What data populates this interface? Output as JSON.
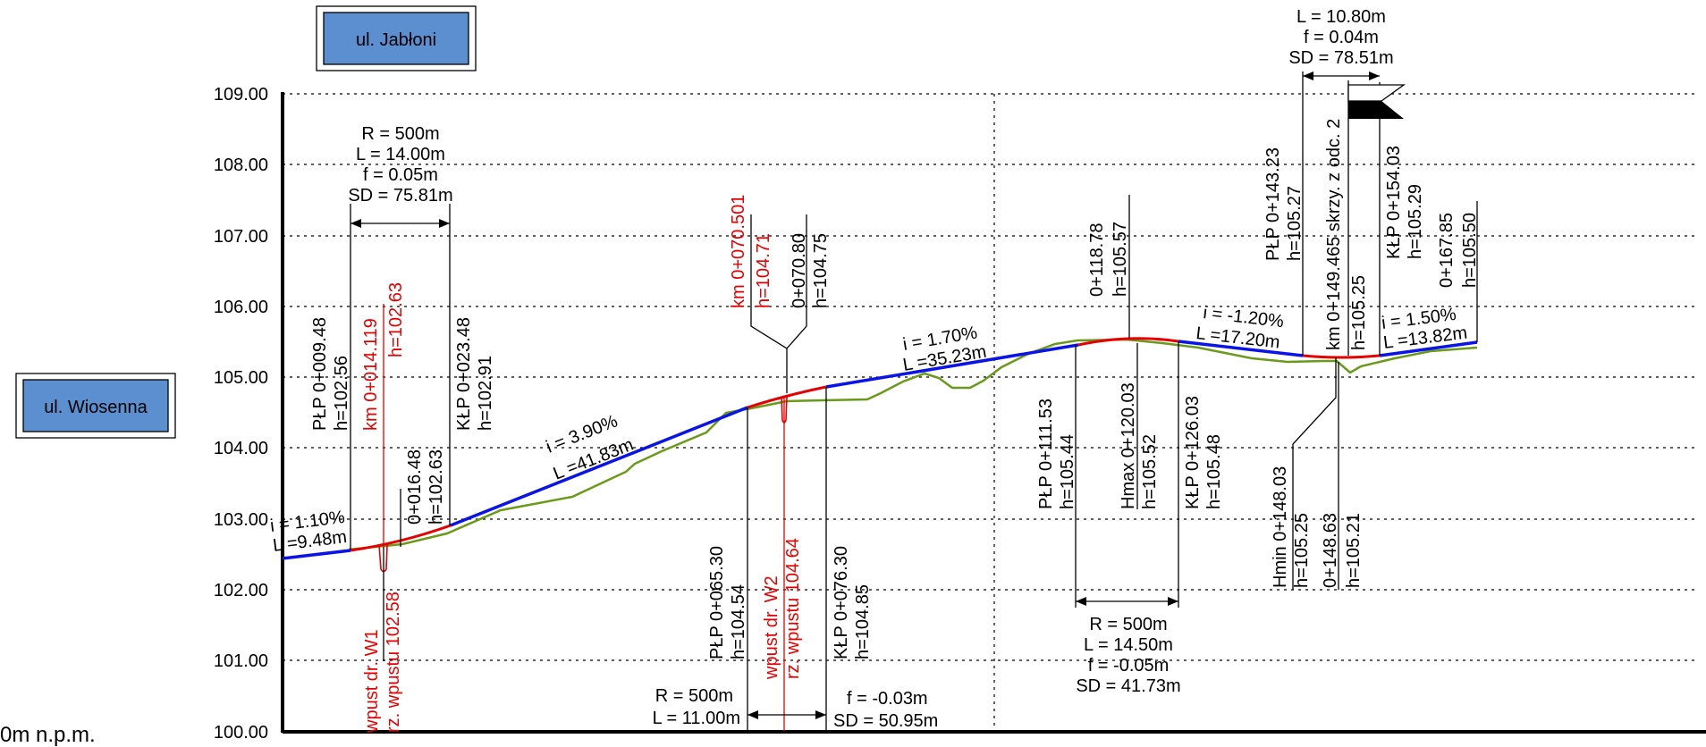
{
  "street_labels": {
    "top": "ul. Jabłoni",
    "left": "ul. Wiosenna"
  },
  "datum_label": "0m n.p.m.",
  "y_axis": {
    "min": 100.0,
    "max": 109.0,
    "ticks": [
      "109.00",
      "108.00",
      "107.00",
      "106.00",
      "105.00",
      "104.00",
      "103.00",
      "102.00",
      "101.00",
      "100.00"
    ]
  },
  "colors": {
    "design_grade": "#0a14e6",
    "vertical_curve": "#e60000",
    "terrain": "#6a9a1a",
    "box_fill": "#5b8fcf"
  },
  "curve_params": {
    "c1": [
      "R = 500m",
      "L = 14.00m",
      "f = 0.05m",
      "SD = 75.81m"
    ],
    "c2": [
      "R = 500m",
      "L = 11.00m",
      "f = -0.03m",
      "SD = 50.95m"
    ],
    "c3": [
      "R = 500m",
      "L = 14.50m",
      "f = -0.05m",
      "SD = 41.73m"
    ],
    "c4": [
      "L = 10.80m",
      "f = 0.04m",
      "SD = 78.51m"
    ]
  },
  "grades": {
    "g1_i": "i = 1.10%",
    "g1_l": "L =9.48m",
    "g2_i": "i = 3.90%",
    "g2_l": "L =41.83m",
    "g3_i": "i = 1.70%",
    "g3_l": "L =35.23m",
    "g4_i": "i = -1.20%",
    "g4_l": "L =17.20m",
    "g5_i": "i = 1.50%",
    "g5_l": "L =13.82m"
  },
  "stations": {
    "s1": [
      "PŁP  0+009.48",
      "h=102.56"
    ],
    "s2": [
      "km 0+014.119",
      "h=102.63"
    ],
    "s3": [
      "0+016.48",
      "h=102.63"
    ],
    "s4": [
      "KŁP  0+023.48",
      "h=102.91"
    ],
    "s5": [
      "wpust dr. W1",
      "rz. wpustu 102.58"
    ],
    "s6": [
      "km 0+070.501",
      "h=104.71"
    ],
    "s7": [
      "0+070.80",
      "h=104.75"
    ],
    "s8": [
      "PŁP  0+065.30",
      "h=104.54"
    ],
    "s9": [
      "wpust dr. W2",
      "rz. wpustu 104.64"
    ],
    "s10": [
      "KŁP  0+076.30",
      "h=104.85"
    ],
    "s11": [
      "0+118.78",
      "h=105.57"
    ],
    "s12": [
      "PŁP  0+111.53",
      "h=105.44"
    ],
    "s13": [
      "Hmax  0+120.03",
      "h=105.52"
    ],
    "s14": [
      "KŁP  0+126.03",
      "h=105.48"
    ],
    "s15": [
      "PŁP  0+143.23",
      "h=105.27"
    ],
    "s16": [
      "km 0+149.465 skrzy. z odc. 2",
      "h=105.25"
    ],
    "s17": [
      "KŁP  0+154.03",
      "h=105.29"
    ],
    "s18": [
      "0+167.85",
      "h=105.50"
    ],
    "s19": [
      "Hmin  0+148.03",
      "h=105.25"
    ],
    "s20": [
      "0+148.63",
      "h=105.21"
    ]
  }
}
